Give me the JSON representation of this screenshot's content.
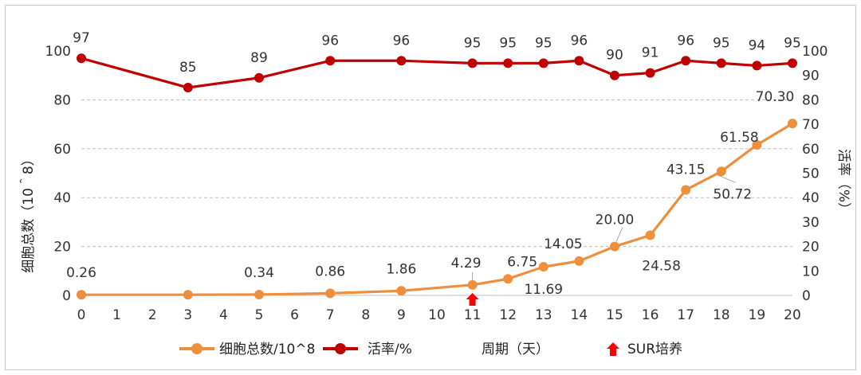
{
  "chart_data": {
    "type": "line",
    "x": [
      0,
      1,
      2,
      3,
      4,
      5,
      6,
      7,
      8,
      9,
      10,
      11,
      12,
      13,
      14,
      15,
      16,
      17,
      18,
      19,
      20
    ],
    "xlabel": "周期（天）",
    "ylabel_left": "细胞总数（10＾8）",
    "ylabel_right": "活率（%）",
    "ylim_left": [
      0,
      100
    ],
    "ylim_right": [
      0,
      100
    ],
    "left_ticks": [
      0,
      20,
      40,
      60,
      80,
      100
    ],
    "right_ticks": [
      0,
      10,
      20,
      30,
      40,
      50,
      60,
      70,
      80,
      90,
      100
    ],
    "gridlines": [
      20,
      40,
      60,
      80
    ],
    "series": [
      {
        "name": "细胞总数/10^8",
        "axis": "left",
        "color": "#ED8F3D",
        "points": [
          [
            0,
            0.26
          ],
          [
            3,
            0.26
          ],
          [
            5,
            0.34
          ],
          [
            7,
            0.86
          ],
          [
            9,
            1.86
          ],
          [
            11,
            4.29
          ],
          [
            12,
            6.75
          ],
          [
            13,
            11.69
          ],
          [
            14,
            14.05
          ],
          [
            15,
            20.0
          ],
          [
            16,
            24.58
          ],
          [
            17,
            43.15
          ],
          [
            18,
            50.72
          ],
          [
            19,
            61.58
          ],
          [
            20,
            70.3
          ]
        ],
        "labels": [
          "0.26",
          "",
          "0.34",
          "0.86",
          "1.86",
          "4.29",
          "6.75",
          "11.69",
          "14.05",
          "20.00",
          "24.58",
          "43.15",
          "50.72",
          "61.58",
          "70.30"
        ]
      },
      {
        "name": "活率/%",
        "axis": "right",
        "color": "#C00000",
        "points": [
          [
            0,
            97
          ],
          [
            3,
            85
          ],
          [
            5,
            89
          ],
          [
            7,
            96
          ],
          [
            9,
            96
          ],
          [
            11,
            95
          ],
          [
            12,
            95
          ],
          [
            13,
            95
          ],
          [
            14,
            96
          ],
          [
            15,
            90
          ],
          [
            16,
            91
          ],
          [
            17,
            96
          ],
          [
            18,
            95
          ],
          [
            19,
            94
          ],
          [
            20,
            95
          ]
        ],
        "labels": [
          "97",
          "85",
          "89",
          "96",
          "96",
          "95",
          "95",
          "95",
          "96",
          "90",
          "91",
          "96",
          "95",
          "94",
          "95"
        ]
      }
    ],
    "annotation": {
      "type": "arrow-up",
      "x": 11,
      "label": "SUR培养",
      "color": "#FF0000"
    },
    "legend": {
      "placement": "bottom",
      "items": [
        "细胞总数/10^8",
        "活率/%",
        "周期（天）",
        "SUR培养"
      ]
    }
  }
}
